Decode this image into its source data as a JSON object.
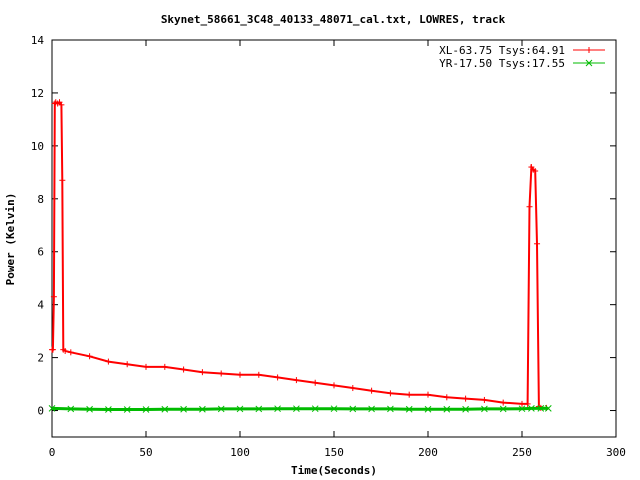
{
  "chart_data": {
    "type": "line",
    "title": "Skynet_58661_3C48_40133_48071_cal.txt, LOWRES, track",
    "xlabel": "Time(Seconds)",
    "ylabel": "Power (Kelvin)",
    "xlim": [
      0,
      300
    ],
    "ylim": [
      -1,
      14
    ],
    "x_ticks": [
      "0",
      "50",
      "100",
      "150",
      "200",
      "250",
      "300"
    ],
    "y_ticks": [
      "0",
      "2",
      "4",
      "6",
      "8",
      "10",
      "12",
      "14"
    ],
    "x_tick_values": [
      0,
      50,
      100,
      150,
      200,
      250,
      300
    ],
    "y_tick_values": [
      0,
      2,
      4,
      6,
      8,
      10,
      12,
      14
    ],
    "grid": false,
    "legend_position": "top-right",
    "series": [
      {
        "name": "XL-63.75 Tsys:64.91",
        "color": "#ff0000",
        "marker": "plus",
        "x": [
          0,
          0.5,
          1,
          1.5,
          2,
          3,
          4,
          5,
          5.5,
          6,
          7,
          10,
          20,
          30,
          40,
          50,
          60,
          70,
          80,
          90,
          100,
          110,
          120,
          130,
          140,
          150,
          160,
          170,
          180,
          190,
          200,
          210,
          220,
          230,
          240,
          250,
          253,
          254,
          255,
          256,
          257,
          258,
          259,
          260,
          263
        ],
        "y": [
          2.3,
          2.3,
          4.3,
          11.6,
          11.65,
          11.6,
          11.65,
          11.55,
          8.7,
          2.3,
          2.25,
          2.2,
          2.05,
          1.85,
          1.75,
          1.65,
          1.65,
          1.55,
          1.45,
          1.4,
          1.35,
          1.35,
          1.25,
          1.15,
          1.05,
          0.95,
          0.85,
          0.75,
          0.65,
          0.6,
          0.6,
          0.5,
          0.45,
          0.4,
          0.3,
          0.25,
          0.25,
          7.7,
          9.2,
          9.1,
          9.05,
          6.3,
          0.15,
          0.1,
          0.1
        ]
      },
      {
        "name": "YR-17.50 Tsys:17.55",
        "color": "#00bb00",
        "marker": "cross",
        "x": [
          0,
          10,
          20,
          30,
          40,
          50,
          60,
          70,
          80,
          90,
          100,
          110,
          120,
          130,
          140,
          150,
          160,
          170,
          180,
          190,
          200,
          210,
          220,
          230,
          240,
          250,
          255,
          260,
          264
        ],
        "y": [
          0.08,
          0.06,
          0.05,
          0.04,
          0.04,
          0.04,
          0.05,
          0.05,
          0.05,
          0.06,
          0.06,
          0.06,
          0.07,
          0.07,
          0.07,
          0.07,
          0.06,
          0.06,
          0.06,
          0.05,
          0.05,
          0.05,
          0.05,
          0.06,
          0.06,
          0.07,
          0.08,
          0.08,
          0.08
        ]
      }
    ]
  }
}
